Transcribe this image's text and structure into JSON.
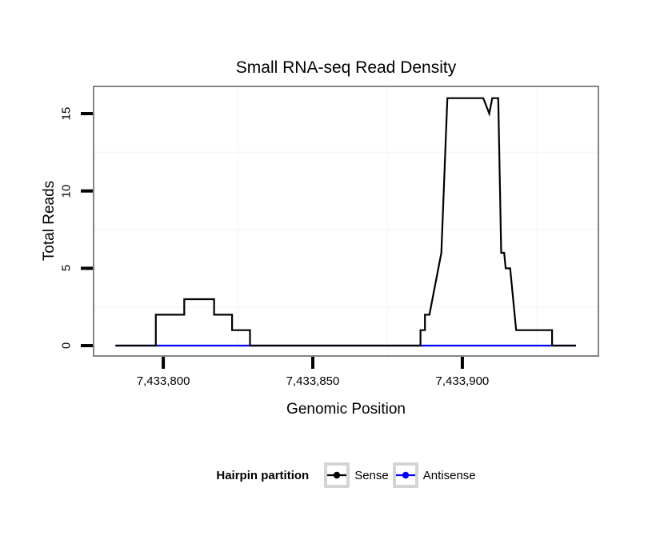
{
  "chart_data": {
    "type": "line",
    "title": "Small RNA-seq Read Density",
    "xlabel": "Genomic Position",
    "ylabel": "Total Reads",
    "xlim": [
      7433776.7,
      7433945.5
    ],
    "ylim": [
      -0.67,
      16.76
    ],
    "grid": "minor-only",
    "legend_title": "Hairpin partition",
    "legend_position": "bottom",
    "x_ticks": [
      {
        "value": 7433800,
        "label": "7,433,800"
      },
      {
        "value": 7433850,
        "label": "7,433,850"
      },
      {
        "value": 7433900,
        "label": "7,433,900"
      }
    ],
    "y_ticks": [
      {
        "value": 0,
        "label": "0"
      },
      {
        "value": 5,
        "label": "5"
      },
      {
        "value": 10,
        "label": "10"
      },
      {
        "value": 15,
        "label": "15"
      }
    ],
    "x_minor_gridlines": [
      7433825,
      7433875,
      7433925
    ],
    "y_minor_gridlines": [
      2.5,
      7.5,
      12.5
    ],
    "series": [
      {
        "name": "Sense",
        "color": "#000000",
        "points": [
          [
            7433784,
            0
          ],
          [
            7433797.5,
            0
          ],
          [
            7433797.5,
            2
          ],
          [
            7433807,
            2
          ],
          [
            7433807,
            3
          ],
          [
            7433817,
            3
          ],
          [
            7433817,
            2
          ],
          [
            7433823,
            2
          ],
          [
            7433823,
            1
          ],
          [
            7433829,
            1
          ],
          [
            7433829,
            0
          ],
          [
            7433886,
            0
          ],
          [
            7433886,
            1
          ],
          [
            7433887.5,
            1
          ],
          [
            7433887.5,
            2
          ],
          [
            7433889,
            2
          ],
          [
            7433890,
            3
          ],
          [
            7433893,
            6
          ],
          [
            7433895,
            16
          ],
          [
            7433907,
            16
          ],
          [
            7433909,
            15
          ],
          [
            7433910,
            16
          ],
          [
            7433912,
            16
          ],
          [
            7433913,
            6
          ],
          [
            7433914,
            6
          ],
          [
            7433914.5,
            5
          ],
          [
            7433916,
            5
          ],
          [
            7433918,
            1
          ],
          [
            7433930,
            1
          ],
          [
            7433930,
            0
          ],
          [
            7433938,
            0
          ]
        ]
      },
      {
        "name": "Antisense",
        "color": "#0000ff",
        "points": [
          [
            7433784,
            0
          ],
          [
            7433938,
            0
          ]
        ]
      }
    ]
  },
  "colors": {
    "panel_border": "#858585",
    "panel_background": "#ffffff",
    "grid_minor": "#f7f7f7",
    "axis_tick": "#000000",
    "legend_key_border": "#d4d4d4"
  }
}
